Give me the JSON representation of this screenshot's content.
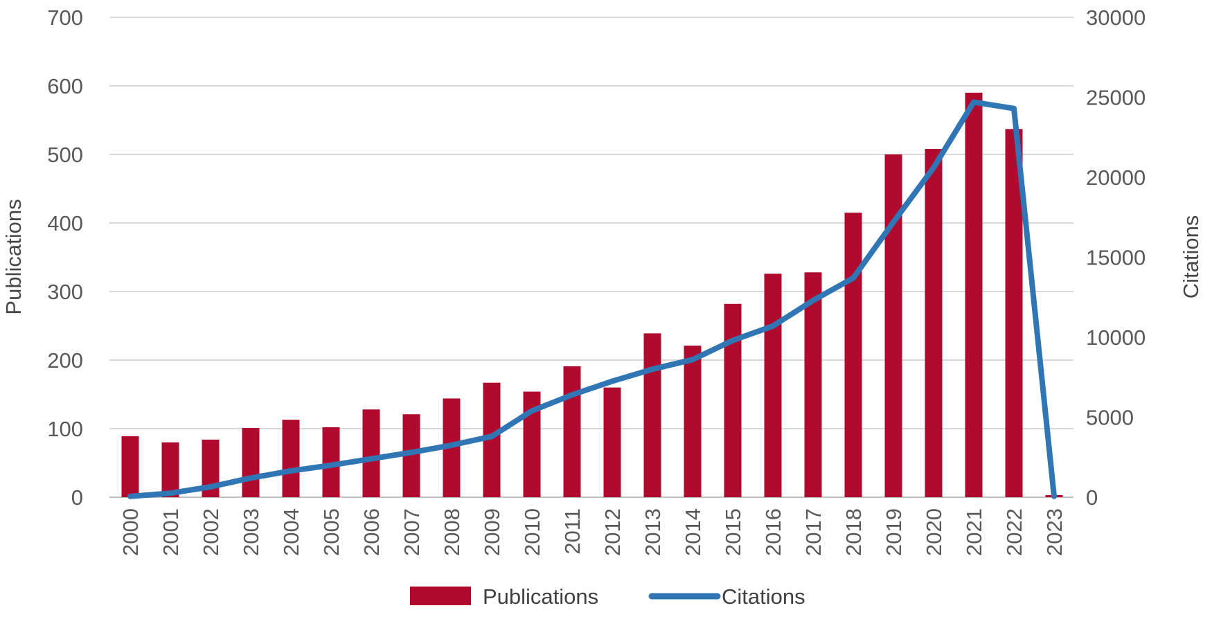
{
  "chart_data": {
    "type": "combo-bar-line",
    "title": "",
    "categories": [
      "2000",
      "2001",
      "2002",
      "2003",
      "2004",
      "2005",
      "2006",
      "2007",
      "2008",
      "2009",
      "2010",
      "2011",
      "2012",
      "2013",
      "2014",
      "2015",
      "2016",
      "2017",
      "2018",
      "2019",
      "2020",
      "2021",
      "2022",
      "2023"
    ],
    "series": [
      {
        "name": "Publications",
        "type": "bar",
        "axis": "left",
        "color": "#B00B2E",
        "values": [
          89,
          80,
          84,
          101,
          113,
          102,
          128,
          121,
          144,
          167,
          154,
          191,
          160,
          239,
          221,
          282,
          326,
          328,
          415,
          500,
          508,
          590,
          537,
          3
        ]
      },
      {
        "name": "Citations",
        "type": "line",
        "axis": "right",
        "color": "#3076B5",
        "values": [
          50,
          250,
          650,
          1200,
          1650,
          2000,
          2400,
          2800,
          3250,
          3800,
          5400,
          6400,
          7250,
          8000,
          8600,
          9800,
          10700,
          12300,
          13700,
          17200,
          20600,
          24700,
          24300,
          50
        ]
      }
    ],
    "left_axis": {
      "label": "Publications",
      "min": 0,
      "max": 700,
      "step": 100,
      "tick_labels": [
        "0",
        "100",
        "200",
        "300",
        "400",
        "500",
        "600",
        "700"
      ]
    },
    "right_axis": {
      "label": "Citations",
      "min": 0,
      "max": 30000,
      "step": 5000,
      "tick_labels": [
        "0",
        "5000",
        "10000",
        "15000",
        "20000",
        "25000",
        "30000"
      ]
    },
    "grid": true,
    "legend": {
      "position": "bottom",
      "items": [
        {
          "label": "Publications",
          "swatch": "bar"
        },
        {
          "label": "Citations",
          "swatch": "line"
        }
      ]
    }
  },
  "colors": {
    "bar": "#B00B2E",
    "line": "#3076B5",
    "gridline": "#D9D9D9",
    "axis_line": "#BFBFBF",
    "tick_text": "#595959",
    "title_text": "#474747",
    "legend_text": "#404040"
  }
}
